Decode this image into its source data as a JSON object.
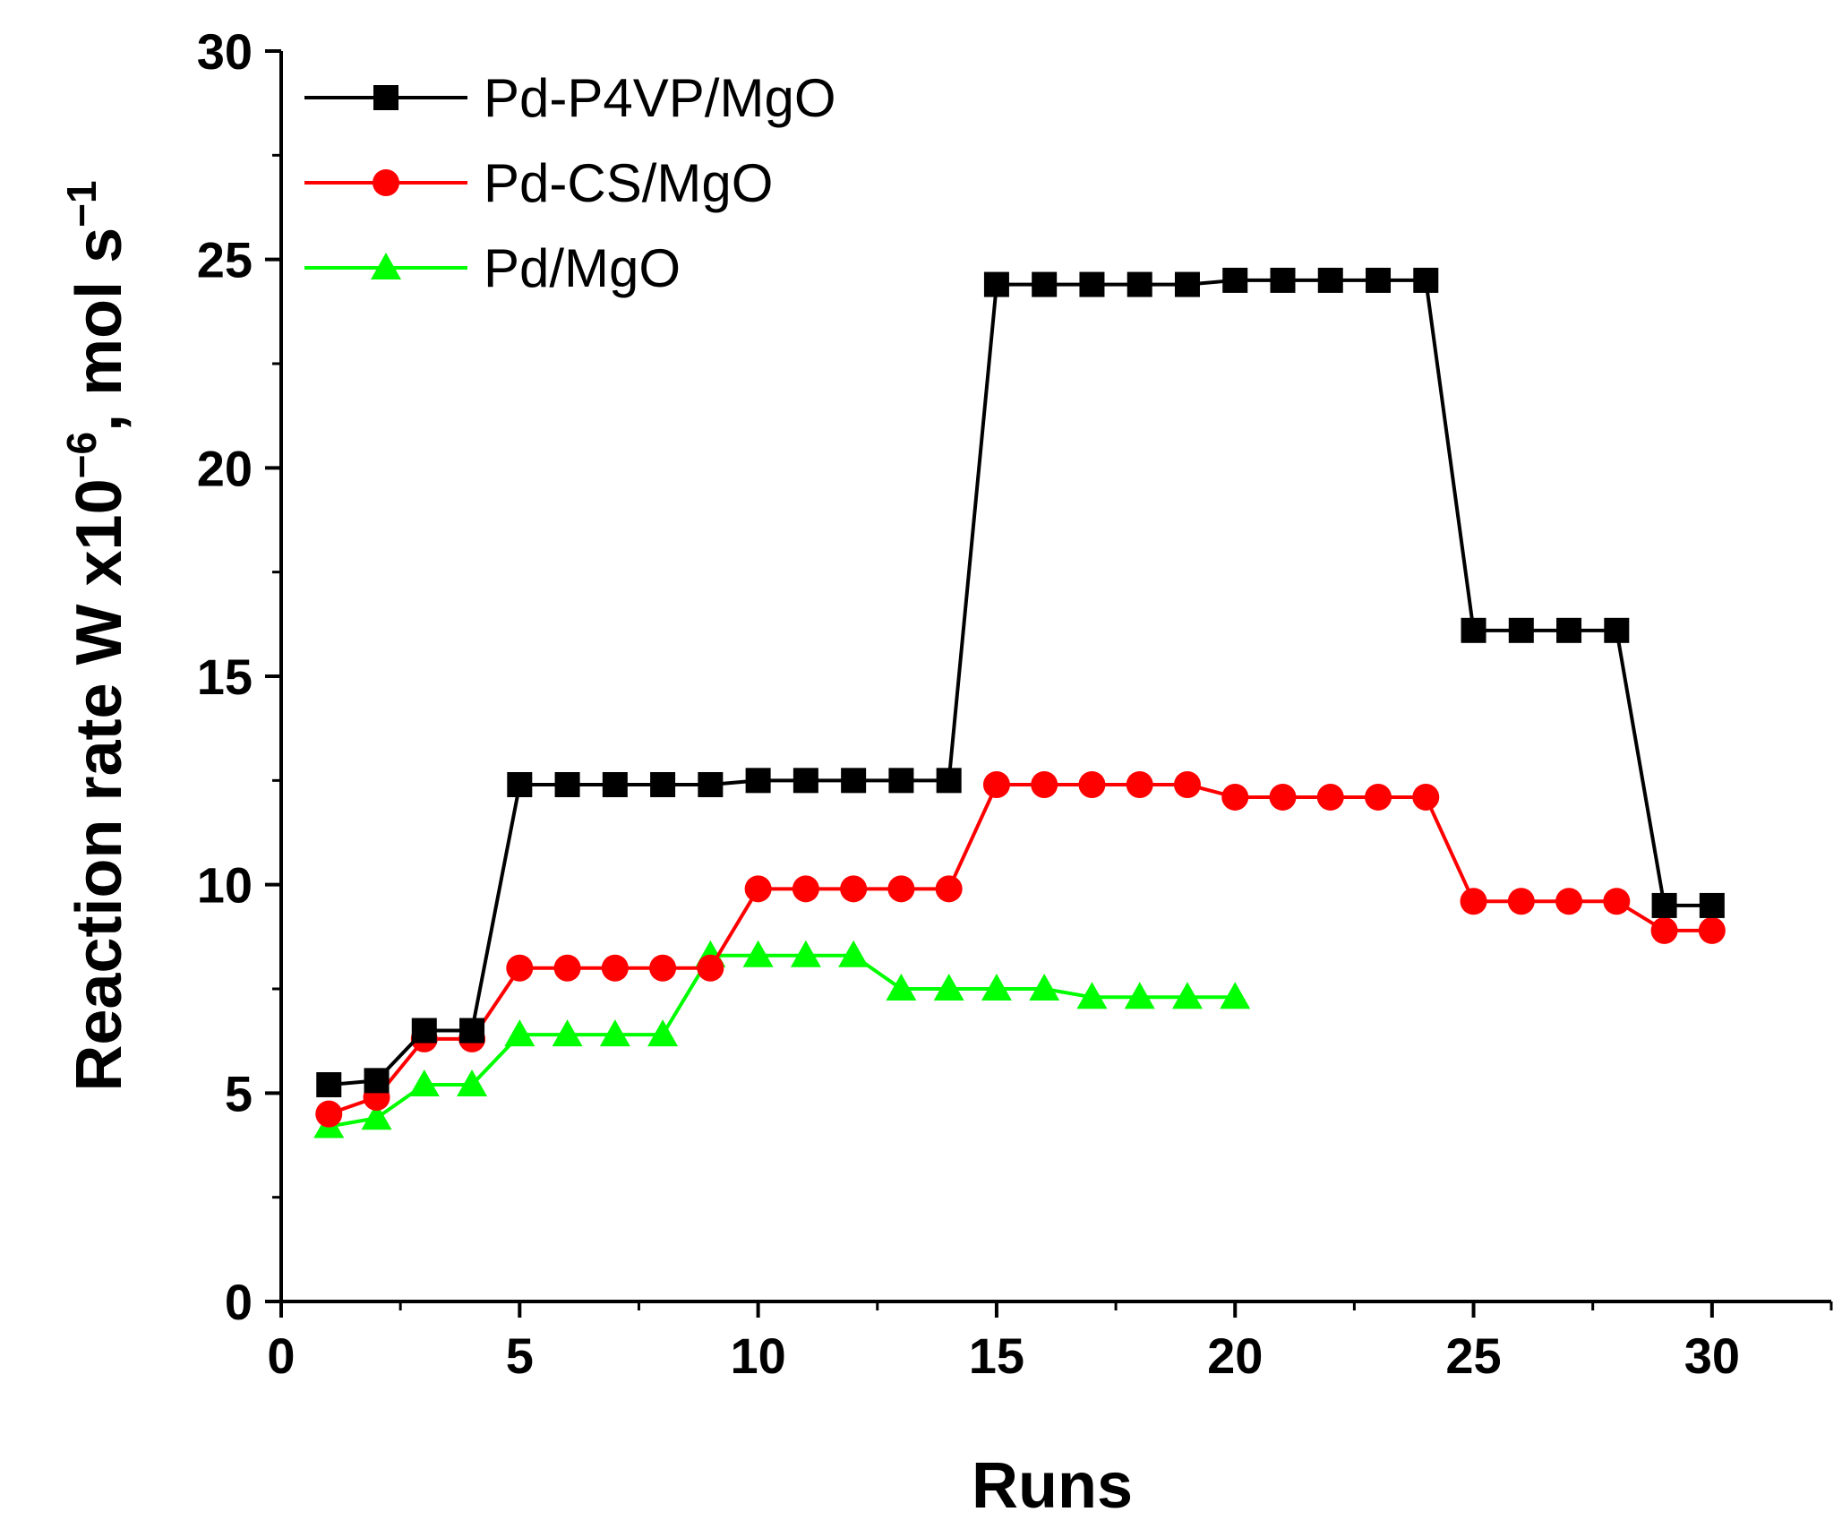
{
  "chart_data": {
    "type": "line",
    "title": "",
    "xlabel": "Runs",
    "ylabel": {
      "main": "Reaction rate W x10",
      "exp1": "−6",
      "mid": ", mol s",
      "exp2": "−1"
    },
    "xlim": [
      0,
      32.5
    ],
    "ylim": [
      0,
      30
    ],
    "x_ticks": [
      0,
      5,
      10,
      15,
      20,
      25,
      30
    ],
    "x_tick_labels": [
      "0",
      "5",
      "10",
      "15",
      "20",
      "25",
      "30"
    ],
    "y_ticks": [
      0,
      5,
      10,
      15,
      20,
      25,
      30
    ],
    "y_tick_labels": [
      "0",
      "5",
      "10",
      "15",
      "20",
      "25",
      "30"
    ],
    "legend_position": "top-left",
    "series": [
      {
        "name": "Pd-P4VP/MgO",
        "color": "#000000",
        "marker": "square",
        "x": [
          1,
          2,
          3,
          4,
          5,
          6,
          7,
          8,
          9,
          10,
          11,
          12,
          13,
          14,
          15,
          16,
          17,
          18,
          19,
          20,
          21,
          22,
          23,
          24,
          25,
          26,
          27,
          28,
          29,
          30
        ],
        "values": [
          5.2,
          5.3,
          6.5,
          6.5,
          12.4,
          12.4,
          12.4,
          12.4,
          12.4,
          12.5,
          12.5,
          12.5,
          12.5,
          12.5,
          24.4,
          24.4,
          24.4,
          24.4,
          24.4,
          24.5,
          24.5,
          24.5,
          24.5,
          24.5,
          16.1,
          16.1,
          16.1,
          16.1,
          9.5,
          9.5
        ]
      },
      {
        "name": "Pd-CS/MgO",
        "color": "#ff0000",
        "marker": "circle",
        "x": [
          1,
          2,
          3,
          4,
          5,
          6,
          7,
          8,
          9,
          10,
          11,
          12,
          13,
          14,
          15,
          16,
          17,
          18,
          19,
          20,
          21,
          22,
          23,
          24,
          25,
          26,
          27,
          28,
          29,
          30
        ],
        "values": [
          4.5,
          4.9,
          6.3,
          6.3,
          8.0,
          8.0,
          8.0,
          8.0,
          8.0,
          9.9,
          9.9,
          9.9,
          9.9,
          9.9,
          12.4,
          12.4,
          12.4,
          12.4,
          12.4,
          12.1,
          12.1,
          12.1,
          12.1,
          12.1,
          9.6,
          9.6,
          9.6,
          9.6,
          8.9,
          8.9
        ]
      },
      {
        "name": "Pd/MgO",
        "color": "#00ff00",
        "marker": "triangle",
        "x": [
          1,
          2,
          3,
          4,
          5,
          6,
          7,
          8,
          9,
          10,
          11,
          12,
          13,
          14,
          15,
          16,
          17,
          18,
          19,
          20
        ],
        "values": [
          4.2,
          4.4,
          5.2,
          5.2,
          6.4,
          6.4,
          6.4,
          6.4,
          8.3,
          8.3,
          8.3,
          8.3,
          7.5,
          7.5,
          7.5,
          7.5,
          7.3,
          7.3,
          7.3,
          7.3
        ]
      }
    ]
  }
}
